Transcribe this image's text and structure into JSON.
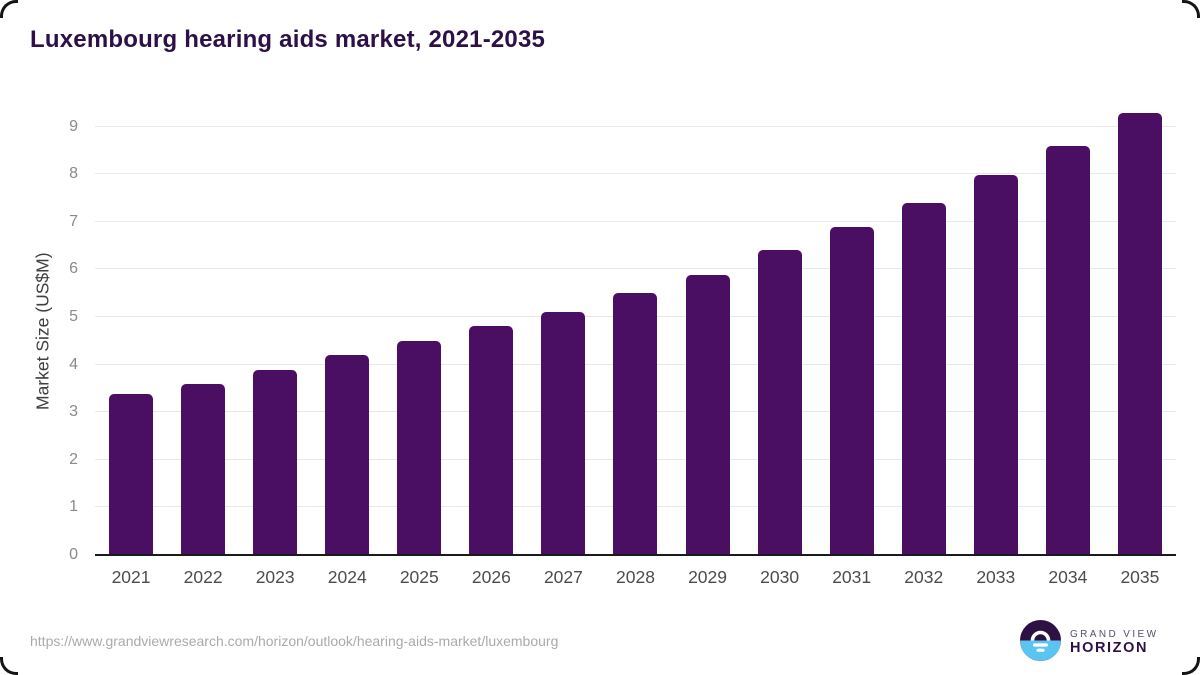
{
  "page": {
    "title": "Luxembourg hearing aids market, 2021-2035",
    "source_url": "https://www.grandviewresearch.com/horizon/outlook/hearing-aids-market/luxembourg"
  },
  "logo": {
    "line1": "GRAND VIEW",
    "line2": "HORIZON"
  },
  "chart_data": {
    "type": "bar",
    "title": "Luxembourg hearing aids market, 2021-2035",
    "categories": [
      "2021",
      "2022",
      "2023",
      "2024",
      "2025",
      "2026",
      "2027",
      "2028",
      "2029",
      "2030",
      "2031",
      "2032",
      "2033",
      "2034",
      "2035"
    ],
    "values": [
      3.37,
      3.58,
      3.87,
      4.18,
      4.48,
      4.79,
      5.08,
      5.48,
      5.87,
      6.38,
      6.87,
      7.37,
      7.97,
      8.57,
      9.27
    ],
    "xlabel": "",
    "ylabel": "Market Size (US$M)",
    "ylim": [
      0,
      9.45
    ],
    "yticks": [
      0,
      1,
      2,
      3,
      4,
      5,
      6,
      7,
      8,
      9
    ],
    "grid": true,
    "legend": false,
    "bar_color": "#4a0f63"
  },
  "colors": {
    "title": "#2c1047",
    "bar": "#4a0f63",
    "axis_line": "#1a1a1a",
    "gridline": "#e8e8ea",
    "y_tick": "#8a8a8a",
    "x_tick": "#4c4c4c",
    "url_text": "#aaaaaa",
    "logo_dark_purple": "#2d1144",
    "logo_light_blue": "#5bc4f0",
    "logo_gray": "#55506a"
  }
}
